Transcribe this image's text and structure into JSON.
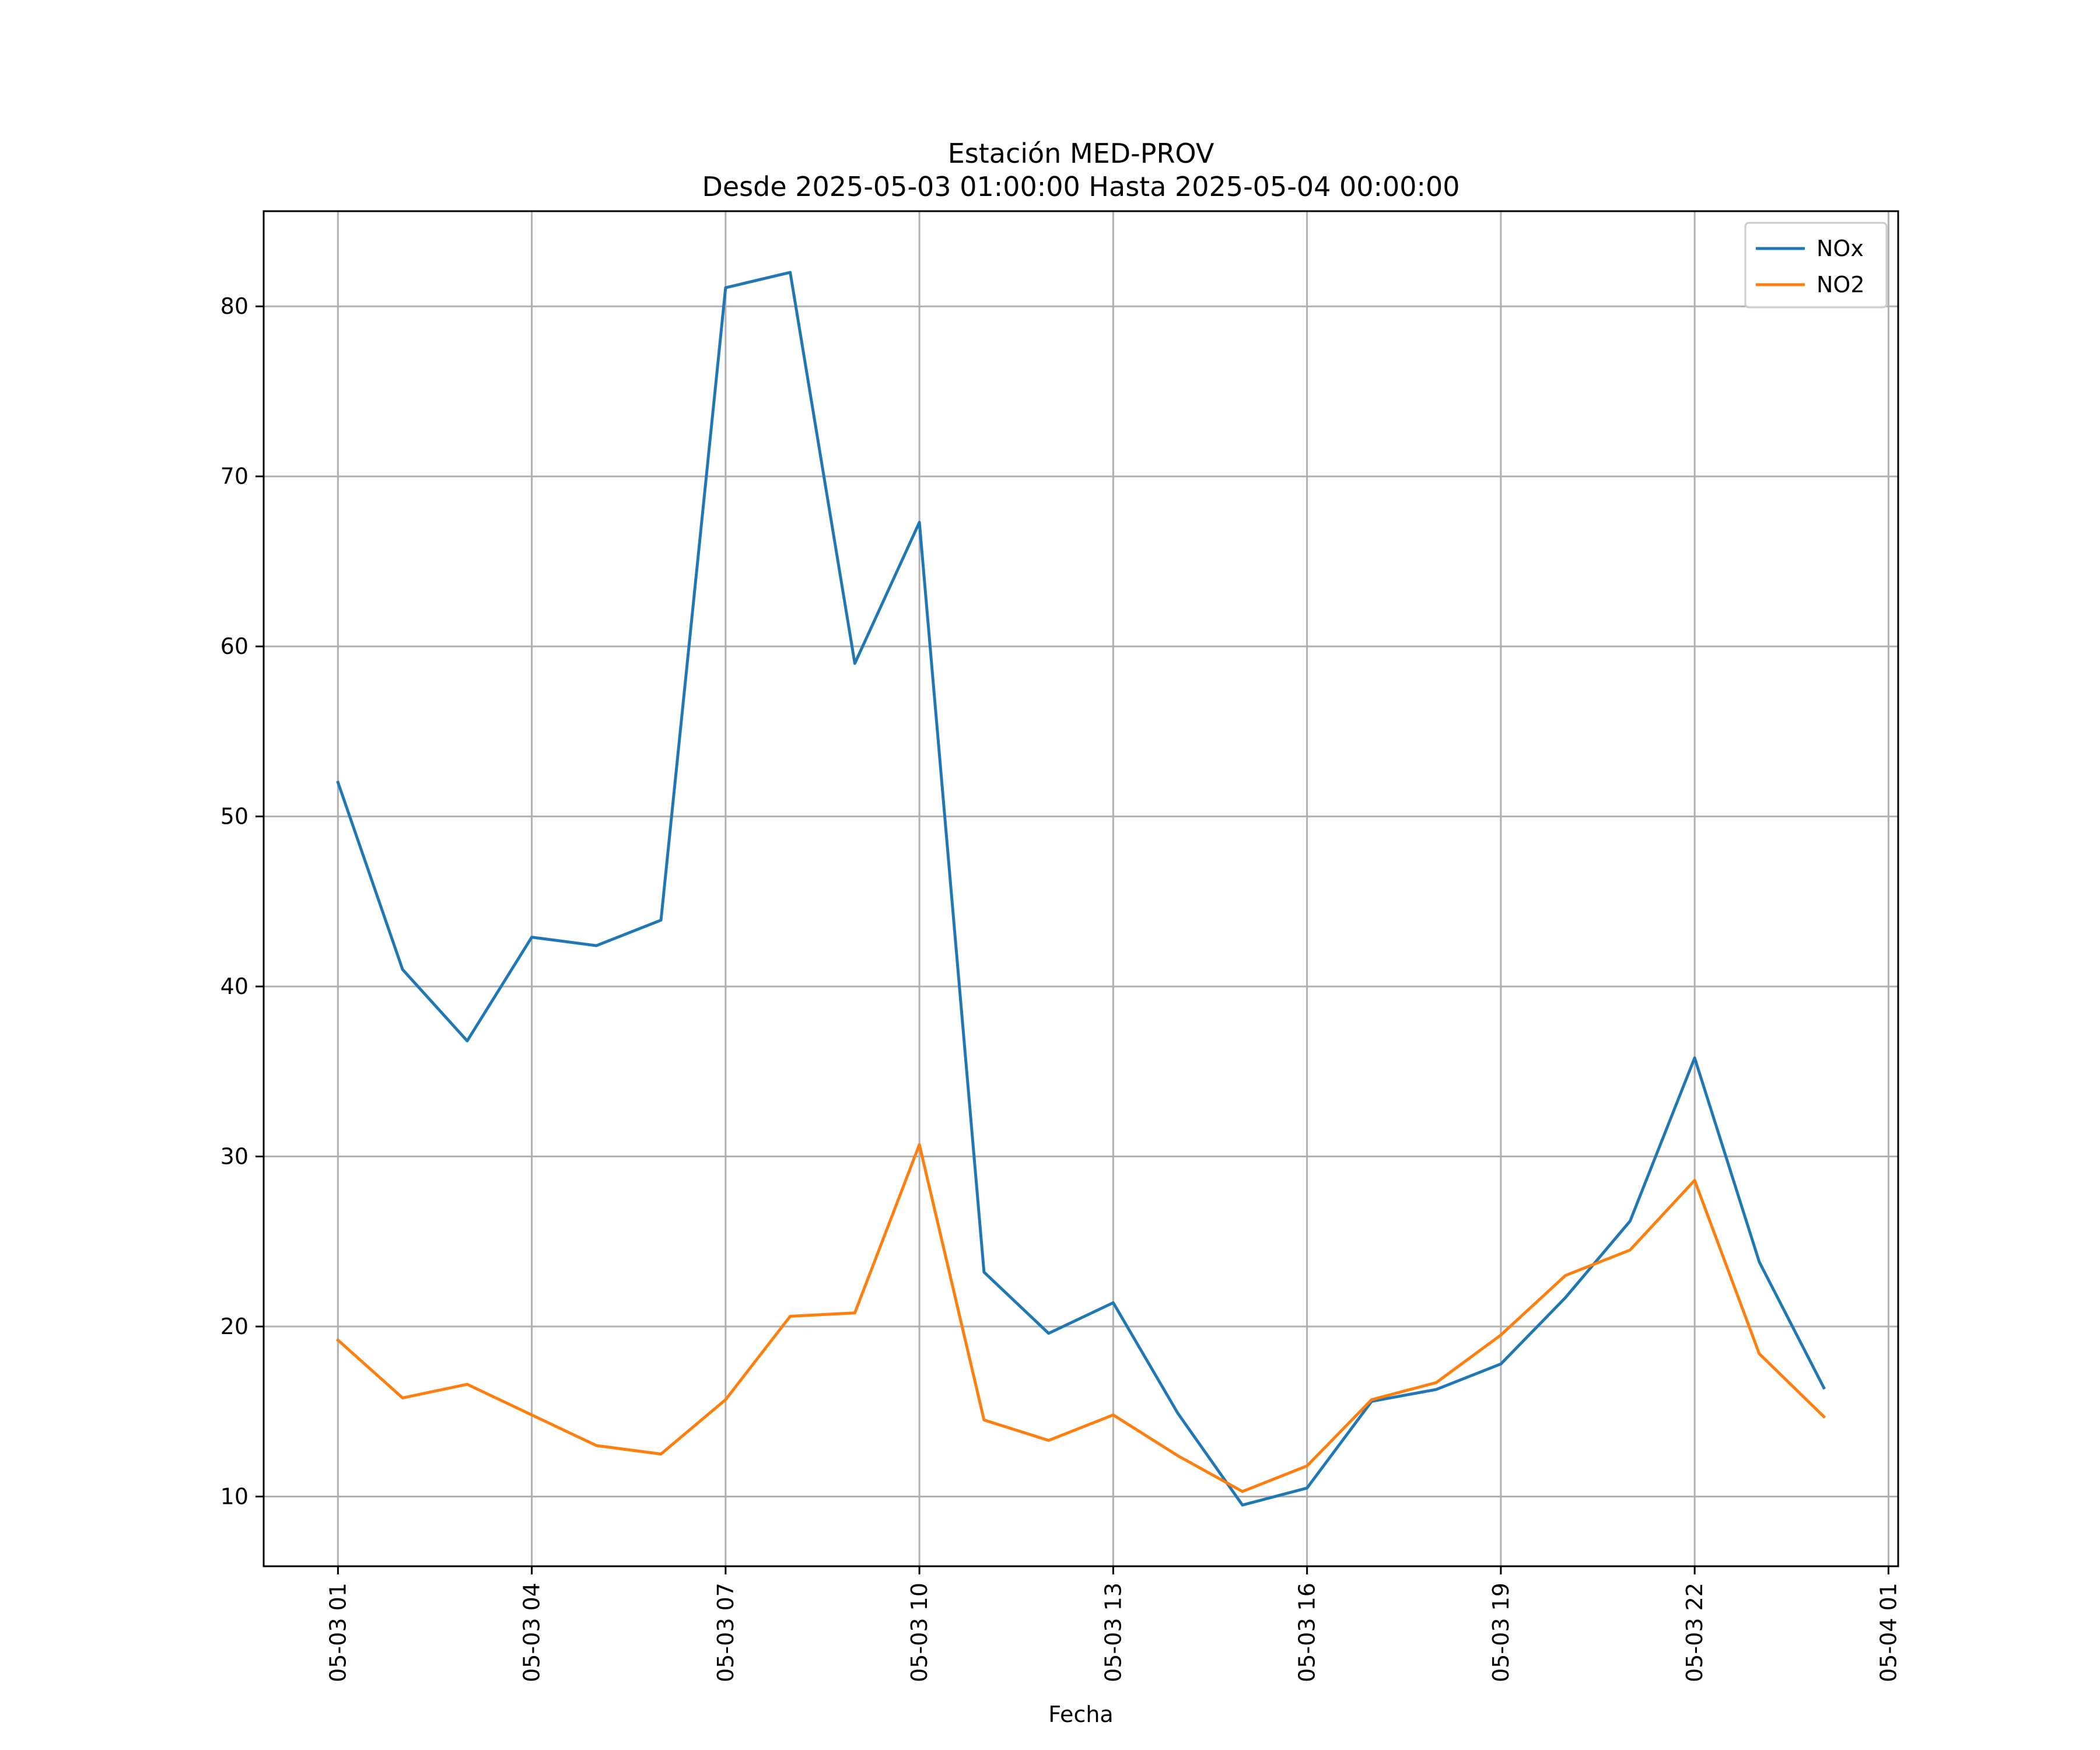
{
  "chart_data": {
    "type": "line",
    "title": "Estación MED-PROV",
    "subtitle": "Desde 2025-05-03 01:00:00 Hasta 2025-05-04 00:00:00",
    "xlabel": "Fecha",
    "ylabel": "",
    "x": [
      "2025-05-03 01:00",
      "2025-05-03 02:00",
      "2025-05-03 03:00",
      "2025-05-03 04:00",
      "2025-05-03 05:00",
      "2025-05-03 06:00",
      "2025-05-03 07:00",
      "2025-05-03 08:00",
      "2025-05-03 09:00",
      "2025-05-03 10:00",
      "2025-05-03 11:00",
      "2025-05-03 12:00",
      "2025-05-03 13:00",
      "2025-05-03 14:00",
      "2025-05-03 15:00",
      "2025-05-03 16:00",
      "2025-05-03 17:00",
      "2025-05-03 18:00",
      "2025-05-03 19:00",
      "2025-05-03 20:00",
      "2025-05-03 21:00",
      "2025-05-03 22:00",
      "2025-05-03 23:00",
      "2025-05-04 00:00"
    ],
    "series": [
      {
        "name": "NOx",
        "color": "#1f77b4",
        "values": [
          52.0,
          41.0,
          36.8,
          42.9,
          42.4,
          43.9,
          81.1,
          82.0,
          59.0,
          67.3,
          23.2,
          19.6,
          21.4,
          14.9,
          9.5,
          10.5,
          15.6,
          16.3,
          17.8,
          21.7,
          26.2,
          35.8,
          23.8,
          16.4
        ]
      },
      {
        "name": "NO2",
        "color": "#ff7f0e",
        "values": [
          19.2,
          15.8,
          16.6,
          14.8,
          13.0,
          12.5,
          15.7,
          20.6,
          20.8,
          30.7,
          14.5,
          13.3,
          14.8,
          12.4,
          10.3,
          11.8,
          15.7,
          16.7,
          19.5,
          23.0,
          24.5,
          28.6,
          18.4,
          14.7
        ]
      }
    ],
    "xticks": [
      {
        "value": "2025-05-03 01:00",
        "label": "05-03 01"
      },
      {
        "value": "2025-05-03 04:00",
        "label": "05-03 04"
      },
      {
        "value": "2025-05-03 07:00",
        "label": "05-03 07"
      },
      {
        "value": "2025-05-03 10:00",
        "label": "05-03 10"
      },
      {
        "value": "2025-05-03 13:00",
        "label": "05-03 13"
      },
      {
        "value": "2025-05-03 16:00",
        "label": "05-03 16"
      },
      {
        "value": "2025-05-03 19:00",
        "label": "05-03 19"
      },
      {
        "value": "2025-05-03 22:00",
        "label": "05-03 22"
      },
      {
        "value": "2025-05-04 01:00",
        "label": "05-04 01"
      }
    ],
    "yticks": [
      10,
      20,
      30,
      40,
      50,
      60,
      70,
      80
    ],
    "xlim": [
      "2025-05-02 23:51",
      "2025-05-04 01:09"
    ],
    "ylim": [
      5.9,
      85.6
    ],
    "grid": true,
    "legend": "top-right"
  }
}
